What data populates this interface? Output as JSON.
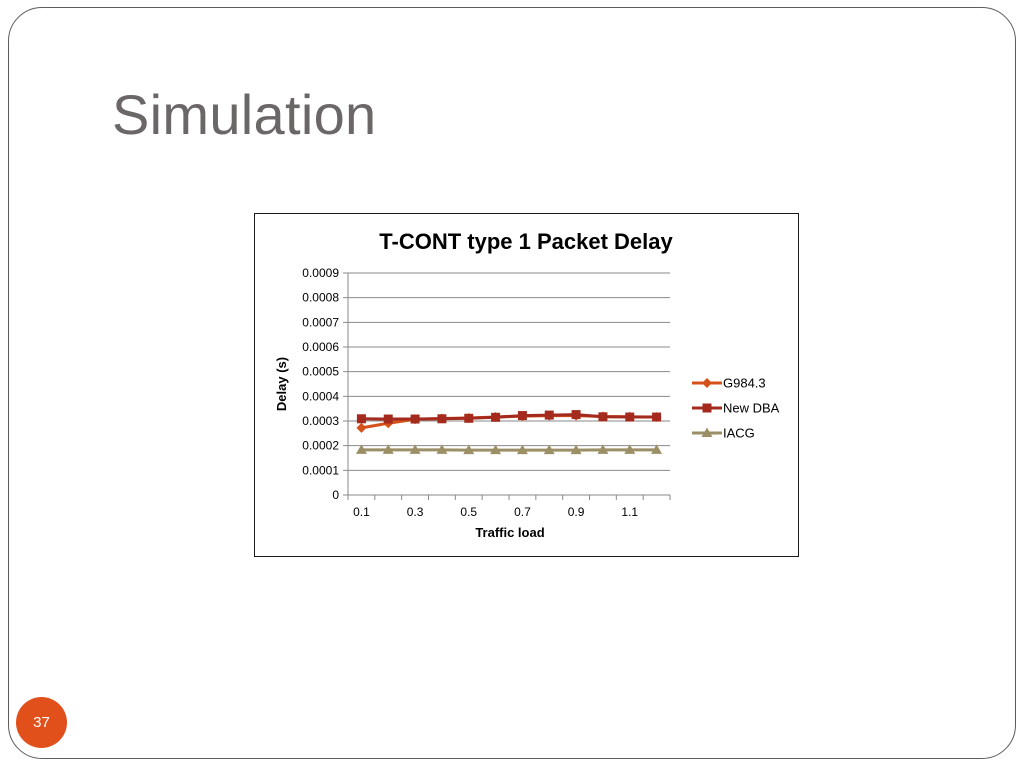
{
  "slide": {
    "title": "Simulation",
    "page_number": "37"
  },
  "colors": {
    "accent": "#e1501b",
    "title": "#6b6767"
  },
  "chart_data": {
    "type": "line",
    "title": "T-CONT type 1 Packet Delay",
    "xlabel": "Traffic load",
    "ylabel": "Delay (s)",
    "x": [
      0.1,
      0.2,
      0.3,
      0.4,
      0.5,
      0.6,
      0.7,
      0.8,
      0.9,
      1.0,
      1.1,
      1.2
    ],
    "x_tick_labels": [
      "0.1",
      "0.3",
      "0.5",
      "0.7",
      "0.9",
      "1.1"
    ],
    "y_tick_labels": [
      "0",
      "0.0001",
      "0.0002",
      "0.0003",
      "0.0004",
      "0.0005",
      "0.0006",
      "0.0007",
      "0.0008",
      "0.0009"
    ],
    "ylim": [
      0,
      0.0009
    ],
    "grid": true,
    "legend_position": "right",
    "series": [
      {
        "name": "G984.3",
        "color": "#d4521a",
        "marker": "diamond",
        "values": [
          0.000272,
          0.000291,
          0.000307,
          0.00031,
          0.000312,
          0.000316,
          0.00032,
          0.000322,
          0.000322,
          0.000318,
          0.000317,
          0.000316
        ]
      },
      {
        "name": "New DBA",
        "color": "#a52a1e",
        "marker": "square",
        "values": [
          0.000309,
          0.000308,
          0.000308,
          0.000309,
          0.000311,
          0.000315,
          0.000322,
          0.000324,
          0.000326,
          0.000317,
          0.000316,
          0.000316
        ]
      },
      {
        "name": "IACG",
        "color": "#9b8f66",
        "marker": "triangle",
        "values": [
          0.000183,
          0.000183,
          0.000183,
          0.000183,
          0.000182,
          0.000182,
          0.000182,
          0.000182,
          0.000182,
          0.000183,
          0.000183,
          0.000183
        ]
      }
    ]
  }
}
